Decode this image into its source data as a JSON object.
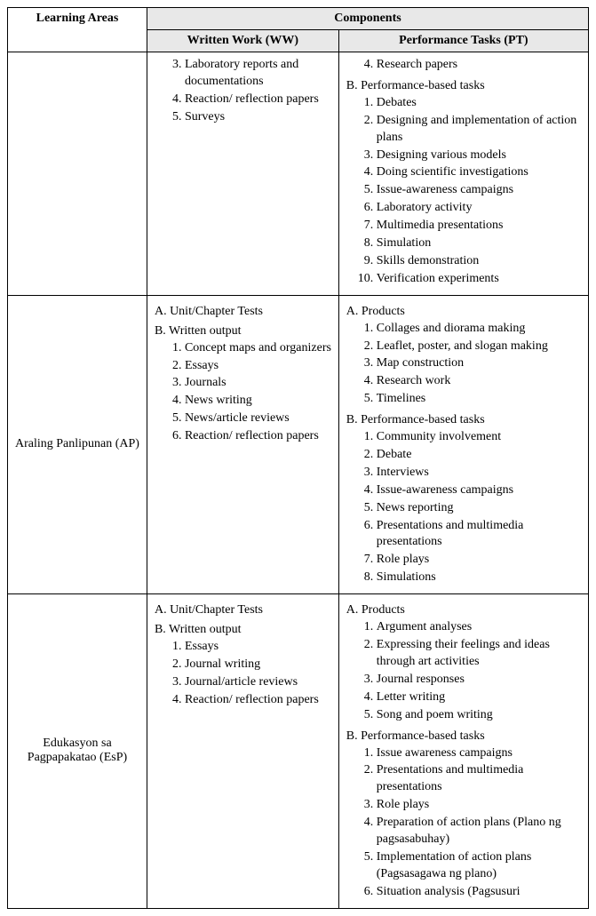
{
  "headers": {
    "components": "Components",
    "learning_areas": "Learning Areas",
    "ww": "Written Work (WW)",
    "pt": "Performance Tasks (PT)"
  },
  "rows": [
    {
      "area": "",
      "ww": {
        "sections": [
          {
            "label": "",
            "start": 3,
            "items": [
              "Laboratory reports and documentations",
              "Reaction/ reflection papers",
              "Surveys"
            ]
          }
        ]
      },
      "pt": {
        "sections": [
          {
            "label": "",
            "start": 4,
            "items": [
              "Research papers"
            ]
          },
          {
            "label": "B.  Performance-based tasks",
            "start": 1,
            "items": [
              "Debates",
              "Designing and implementation of action plans",
              "Designing various models",
              "Doing scientific investigations",
              "Issue-awareness campaigns",
              "Laboratory activity",
              "Multimedia presentations",
              "Simulation",
              "Skills demonstration",
              "Verification experiments"
            ]
          }
        ]
      }
    },
    {
      "area": "Araling Panlipunan (AP)",
      "ww": {
        "sections": [
          {
            "label": "A.  Unit/Chapter Tests",
            "items": []
          },
          {
            "label": "B.  Written output",
            "start": 1,
            "items": [
              "Concept maps and organizers",
              "Essays",
              "Journals",
              "News writing",
              "News/article reviews",
              "Reaction/ reflection papers"
            ]
          }
        ]
      },
      "pt": {
        "sections": [
          {
            "label": "A.  Products",
            "start": 1,
            "items": [
              "Collages and diorama making",
              "Leaflet, poster, and slogan making",
              "Map construction",
              "Research work",
              "Timelines"
            ]
          },
          {
            "label": "B.  Performance-based tasks",
            "start": 1,
            "items": [
              "Community involvement",
              "Debate",
              "Interviews",
              "Issue-awareness campaigns",
              "News reporting",
              "Presentations and multimedia presentations",
              "Role plays",
              "Simulations"
            ]
          }
        ]
      }
    },
    {
      "area": "Edukasyon sa Pagpapakatao (EsP)",
      "ww": {
        "sections": [
          {
            "label": "A.  Unit/Chapter Tests",
            "items": []
          },
          {
            "label": "B.  Written output",
            "start": 1,
            "items": [
              "Essays",
              "Journal writing",
              "Journal/article reviews",
              "Reaction/ reflection papers"
            ]
          }
        ]
      },
      "pt": {
        "sections": [
          {
            "label": "A.  Products",
            "start": 1,
            "items": [
              "Argument analyses",
              "Expressing their feelings and ideas through art activities",
              "Journal responses",
              "Letter writing",
              "Song and poem writing"
            ]
          },
          {
            "label": "B.  Performance-based tasks",
            "start": 1,
            "items": [
              "Issue awareness campaigns",
              "Presentations and multimedia presentations",
              "Role plays",
              "Preparation of action plans (Plano ng pagsasabuhay)",
              "Implementation of action plans (Pagsasagawa ng plano)",
              "Situation analysis (Pagsusuri"
            ]
          }
        ]
      }
    }
  ]
}
